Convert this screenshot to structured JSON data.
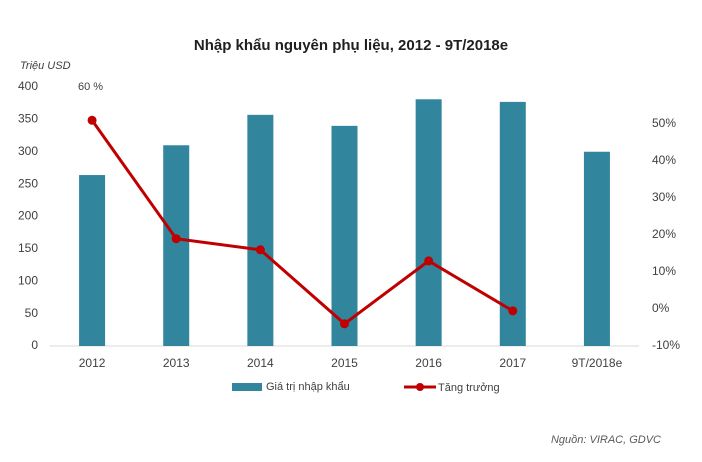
{
  "chart_data": {
    "type": "bar_line",
    "title": "Nhập khẩu nguyên phụ liệu, 2012 - 9T/2018e",
    "y_label": "Triệu USD",
    "annotation": "60 %",
    "source": "Nguồn: VIRAC, GDVC",
    "categories": [
      "2012",
      "2013",
      "2014",
      "2015",
      "2016",
      "2017",
      "9T/2018e"
    ],
    "series": [
      {
        "name": "Giá trị nhập khẩu",
        "type": "bar",
        "color": "#31859c",
        "values": [
          264,
          310,
          357,
          340,
          381,
          377,
          300
        ]
      },
      {
        "name": "Tăng trưởng",
        "type": "line",
        "axis": "y2",
        "color": "#c00000",
        "values": [
          51,
          19,
          16,
          -4,
          13,
          -0.5,
          null
        ]
      }
    ],
    "ylim": [
      0,
      400
    ],
    "yticks": [
      0,
      50,
      100,
      150,
      200,
      250,
      300,
      350,
      400
    ],
    "y2lim": [
      -10,
      60
    ],
    "y2ticks": [
      {
        "value": -10,
        "label": "-10%"
      },
      {
        "value": 0,
        "label": "0%"
      },
      {
        "value": 10,
        "label": "10%"
      },
      {
        "value": 20,
        "label": "20%"
      },
      {
        "value": 30,
        "label": "30%"
      },
      {
        "value": 40,
        "label": "40%"
      },
      {
        "value": 50,
        "label": "50%"
      }
    ],
    "grid": false,
    "legend": "bottom"
  }
}
